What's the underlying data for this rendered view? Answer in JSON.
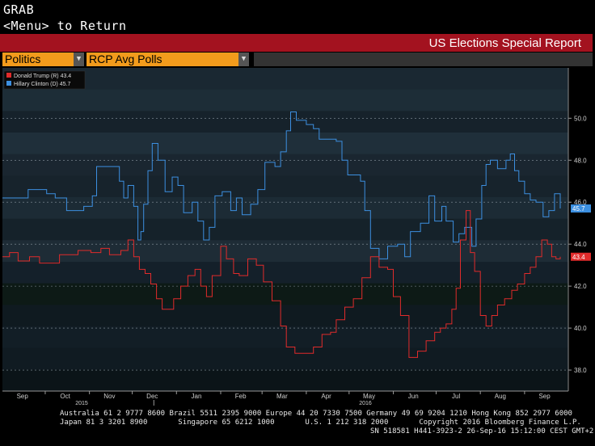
{
  "header": {
    "line1": "GRAB",
    "line2": "<Menu> to Return"
  },
  "banner": {
    "title": "US Elections Special Report"
  },
  "dropdowns": {
    "category": "Politics",
    "view": "RCP Avg Polls"
  },
  "colors": {
    "trump": "#e02b2b",
    "clinton": "#3c8fe0",
    "banner": "#a3121f",
    "dropdown": "#f29b1c"
  },
  "chart_data": {
    "type": "line",
    "x_start": "2015-09-01",
    "x_end": "2016-09-26",
    "ylim": [
      37,
      52.4
    ],
    "y_ticks": [
      "38.0",
      "40.0",
      "42.0",
      "44.0",
      "46.0",
      "48.0",
      "50.0"
    ],
    "month_labels": [
      "Sep",
      "Oct",
      "Nov",
      "Dec",
      "Jan",
      "Feb",
      "Mar",
      "Apr",
      "May",
      "Jun",
      "Jul",
      "Aug",
      "Sep"
    ],
    "year_labels": [
      "2015",
      "2016"
    ],
    "legend": [
      {
        "label": "Donald Trump (R)",
        "value": "43.4"
      },
      {
        "label": "Hillary Clinton (D)",
        "value": "45.7"
      }
    ],
    "series": [
      {
        "name": "Hillary Clinton (D)",
        "last": "45.7",
        "points": [
          [
            "2015-09-01",
            46.2
          ],
          [
            "2015-09-14",
            46.2
          ],
          [
            "2015-09-19",
            46.6
          ],
          [
            "2015-10-02",
            46.4
          ],
          [
            "2015-10-08",
            46.2
          ],
          [
            "2015-10-16",
            45.6
          ],
          [
            "2015-10-28",
            45.8
          ],
          [
            "2015-11-03",
            46.3
          ],
          [
            "2015-11-06",
            47.7
          ],
          [
            "2015-11-18",
            47.7
          ],
          [
            "2015-11-22",
            47.0
          ],
          [
            "2015-11-25",
            46.2
          ],
          [
            "2015-11-28",
            46.8
          ],
          [
            "2015-12-02",
            45.8
          ],
          [
            "2015-12-05",
            44.2
          ],
          [
            "2015-12-07",
            44.6
          ],
          [
            "2015-12-09",
            45.9
          ],
          [
            "2015-12-12",
            47.5
          ],
          [
            "2015-12-15",
            48.8
          ],
          [
            "2015-12-19",
            48.0
          ],
          [
            "2015-12-24",
            46.5
          ],
          [
            "2015-12-29",
            47.2
          ],
          [
            "2016-01-02",
            46.8
          ],
          [
            "2016-01-06",
            45.5
          ],
          [
            "2016-01-12",
            46.0
          ],
          [
            "2016-01-16",
            45.1
          ],
          [
            "2016-01-20",
            44.2
          ],
          [
            "2016-01-24",
            44.8
          ],
          [
            "2016-01-28",
            46.3
          ],
          [
            "2016-02-02",
            46.5
          ],
          [
            "2016-02-08",
            45.6
          ],
          [
            "2016-02-12",
            46.2
          ],
          [
            "2016-02-16",
            45.4
          ],
          [
            "2016-02-22",
            45.9
          ],
          [
            "2016-02-27",
            46.6
          ],
          [
            "2016-03-03",
            47.9
          ],
          [
            "2016-03-10",
            47.7
          ],
          [
            "2016-03-14",
            48.4
          ],
          [
            "2016-03-18",
            49.4
          ],
          [
            "2016-03-21",
            50.3
          ],
          [
            "2016-03-25",
            49.9
          ],
          [
            "2016-04-01",
            49.7
          ],
          [
            "2016-04-06",
            49.5
          ],
          [
            "2016-04-10",
            49.0
          ],
          [
            "2016-04-18",
            49.0
          ],
          [
            "2016-04-22",
            48.9
          ],
          [
            "2016-04-26",
            48.0
          ],
          [
            "2016-04-30",
            47.3
          ],
          [
            "2016-05-06",
            47.3
          ],
          [
            "2016-05-09",
            47.0
          ],
          [
            "2016-05-12",
            45.6
          ],
          [
            "2016-05-16",
            43.8
          ],
          [
            "2016-05-22",
            43.3
          ],
          [
            "2016-05-28",
            43.9
          ],
          [
            "2016-06-04",
            44.0
          ],
          [
            "2016-06-09",
            43.4
          ],
          [
            "2016-06-13",
            44.6
          ],
          [
            "2016-06-20",
            45.0
          ],
          [
            "2016-06-26",
            46.3
          ],
          [
            "2016-06-30",
            45.1
          ],
          [
            "2016-07-05",
            45.8
          ],
          [
            "2016-07-08",
            45.1
          ],
          [
            "2016-07-13",
            44.1
          ],
          [
            "2016-07-17",
            44.5
          ],
          [
            "2016-07-21",
            44.8
          ],
          [
            "2016-07-26",
            43.9
          ],
          [
            "2016-07-29",
            45.2
          ],
          [
            "2016-08-02",
            46.8
          ],
          [
            "2016-08-05",
            47.8
          ],
          [
            "2016-08-08",
            48.0
          ],
          [
            "2016-08-13",
            47.6
          ],
          [
            "2016-08-19",
            48.0
          ],
          [
            "2016-08-22",
            48.3
          ],
          [
            "2016-08-25",
            47.5
          ],
          [
            "2016-08-28",
            47.0
          ],
          [
            "2016-09-01",
            46.4
          ],
          [
            "2016-09-05",
            46.1
          ],
          [
            "2016-09-09",
            46.0
          ],
          [
            "2016-09-14",
            45.3
          ],
          [
            "2016-09-18",
            45.6
          ],
          [
            "2016-09-22",
            46.4
          ],
          [
            "2016-09-26",
            45.7
          ]
        ]
      },
      {
        "name": "Donald Trump (R)",
        "last": "43.4",
        "points": [
          [
            "2015-09-01",
            43.4
          ],
          [
            "2015-09-06",
            43.6
          ],
          [
            "2015-09-12",
            43.2
          ],
          [
            "2015-09-20",
            43.4
          ],
          [
            "2015-09-27",
            43.1
          ],
          [
            "2015-10-05",
            43.1
          ],
          [
            "2015-10-11",
            43.5
          ],
          [
            "2015-10-24",
            43.7
          ],
          [
            "2015-11-02",
            43.6
          ],
          [
            "2015-11-09",
            43.8
          ],
          [
            "2015-11-15",
            43.5
          ],
          [
            "2015-11-23",
            43.7
          ],
          [
            "2015-11-28",
            44.2
          ],
          [
            "2015-12-02",
            43.4
          ],
          [
            "2015-12-06",
            42.8
          ],
          [
            "2015-12-10",
            42.6
          ],
          [
            "2015-12-14",
            42.1
          ],
          [
            "2015-12-18",
            41.4
          ],
          [
            "2015-12-22",
            40.9
          ],
          [
            "2015-12-30",
            41.4
          ],
          [
            "2016-01-04",
            42.0
          ],
          [
            "2016-01-09",
            42.5
          ],
          [
            "2016-01-14",
            42.8
          ],
          [
            "2016-01-18",
            42.0
          ],
          [
            "2016-01-22",
            41.5
          ],
          [
            "2016-01-26",
            42.5
          ],
          [
            "2016-02-01",
            43.9
          ],
          [
            "2016-02-05",
            43.3
          ],
          [
            "2016-02-10",
            42.6
          ],
          [
            "2016-02-14",
            42.5
          ],
          [
            "2016-02-20",
            43.3
          ],
          [
            "2016-02-26",
            43.0
          ],
          [
            "2016-03-02",
            42.2
          ],
          [
            "2016-03-08",
            41.3
          ],
          [
            "2016-03-14",
            40.1
          ],
          [
            "2016-03-18",
            39.1
          ],
          [
            "2016-03-24",
            38.8
          ],
          [
            "2016-03-30",
            38.8
          ],
          [
            "2016-04-06",
            39.1
          ],
          [
            "2016-04-12",
            39.7
          ],
          [
            "2016-04-18",
            39.8
          ],
          [
            "2016-04-22",
            40.4
          ],
          [
            "2016-04-28",
            41.0
          ],
          [
            "2016-05-04",
            41.4
          ],
          [
            "2016-05-10",
            42.4
          ],
          [
            "2016-05-16",
            43.4
          ],
          [
            "2016-05-22",
            42.9
          ],
          [
            "2016-05-28",
            42.8
          ],
          [
            "2016-06-01",
            41.5
          ],
          [
            "2016-06-06",
            40.6
          ],
          [
            "2016-06-12",
            38.6
          ],
          [
            "2016-06-18",
            38.9
          ],
          [
            "2016-06-24",
            39.4
          ],
          [
            "2016-06-30",
            39.8
          ],
          [
            "2016-07-04",
            40.0
          ],
          [
            "2016-07-08",
            40.2
          ],
          [
            "2016-07-12",
            40.9
          ],
          [
            "2016-07-15",
            41.9
          ],
          [
            "2016-07-18",
            44.2
          ],
          [
            "2016-07-22",
            45.6
          ],
          [
            "2016-07-25",
            43.6
          ],
          [
            "2016-07-28",
            42.7
          ],
          [
            "2016-08-01",
            40.6
          ],
          [
            "2016-08-05",
            40.1
          ],
          [
            "2016-08-09",
            40.6
          ],
          [
            "2016-08-13",
            41.1
          ],
          [
            "2016-08-18",
            41.4
          ],
          [
            "2016-08-23",
            41.8
          ],
          [
            "2016-08-27",
            42.1
          ],
          [
            "2016-09-01",
            42.6
          ],
          [
            "2016-09-05",
            42.9
          ],
          [
            "2016-09-09",
            43.4
          ],
          [
            "2016-09-13",
            44.2
          ],
          [
            "2016-09-17",
            44.0
          ],
          [
            "2016-09-20",
            43.4
          ],
          [
            "2016-09-23",
            43.3
          ],
          [
            "2016-09-26",
            43.4
          ]
        ]
      }
    ]
  },
  "footer": {
    "line1": "Australia 61 2 9777 8600 Brazil 5511 2395 9000 Europe 44 20 7330 7500 Germany 49 69 9204 1210 Hong Kong 852 2977 6000",
    "line2": "Japan 81 3 3201 8900       Singapore 65 6212 1000       U.S. 1 212 318 2000       Copyright 2016 Bloomberg Finance L.P.",
    "line3": "SN 518581 H441-3923-2 26-Sep-16 15:12:00 CEST GMT+2:00"
  }
}
